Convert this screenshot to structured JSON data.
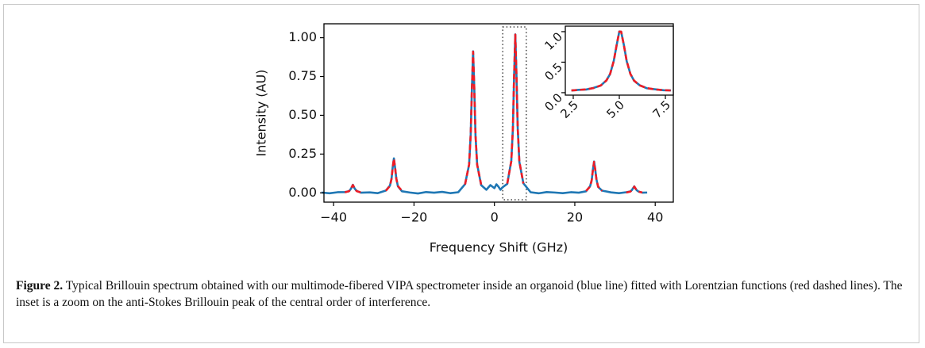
{
  "chart_data": [
    {
      "type": "line",
      "xlabel": "Frequency Shift (GHz)",
      "ylabel": "Intensity (AU)",
      "xlim": [
        -42.4,
        44.5
      ],
      "ylim": [
        -0.06,
        1.09
      ],
      "xticks": [
        {
          "value": -40,
          "label": "−40"
        },
        {
          "value": -20,
          "label": "−20"
        },
        0,
        20,
        40
      ],
      "yticks": [
        {
          "value": 0,
          "label": "0.00"
        },
        {
          "value": 0.25,
          "label": "0.25"
        },
        {
          "value": 0.5,
          "label": "0.50"
        },
        {
          "value": 0.75,
          "label": "0.75"
        },
        {
          "value": 1,
          "label": "1.00"
        }
      ],
      "grid": false,
      "x": [
        -43,
        -41,
        -39,
        -37.2,
        -36.2,
        -35.8,
        -35.5,
        -35.2,
        -34.9,
        -34.6,
        -34.2,
        -33.2,
        -31,
        -29,
        -27,
        -26,
        -25.6,
        -25.3,
        -25,
        -24.7,
        -24.4,
        -24,
        -23,
        -21,
        -19,
        -17,
        -15,
        -13,
        -11,
        -9,
        -7.3,
        -6.3,
        -5.9,
        -5.6,
        -5.3,
        -5,
        -4.7,
        -4.3,
        -3.3,
        -2,
        -1,
        0,
        0.5,
        1,
        1.5,
        2,
        3.2,
        4.2,
        4.6,
        4.9,
        5.2,
        5.5,
        5.8,
        6.2,
        7.2,
        9,
        11,
        13,
        15,
        17,
        19,
        21,
        22.8,
        23.8,
        24.2,
        24.5,
        24.8,
        25.1,
        25.4,
        25.8,
        26.8,
        29,
        31,
        32.8,
        33.8,
        34.2,
        34.5,
        34.8,
        35.1,
        35.4,
        35.8,
        36.8,
        38
      ],
      "series": [
        {
          "color": "#1f77b4",
          "style": "solid",
          "values": [
            0.002,
            -0.003,
            0.004,
            0.005,
            0.01,
            0.022,
            0.035,
            0.052,
            0.034,
            0.022,
            0.012,
            0.001,
            0.003,
            -0.002,
            0.015,
            0.046,
            0.088,
            0.165,
            0.222,
            0.16,
            0.093,
            0.042,
            0.01,
            0.002,
            -0.004,
            0.005,
            0.001,
            0.006,
            -0.002,
            0.004,
            0.056,
            0.18,
            0.376,
            0.665,
            0.913,
            0.672,
            0.37,
            0.185,
            0.05,
            0.02,
            0.05,
            0.03,
            0.055,
            0.04,
            0.02,
            0.035,
            0.058,
            0.206,
            0.415,
            0.752,
            1.022,
            0.748,
            0.42,
            0.2,
            0.062,
            0.004,
            -0.003,
            0.005,
            0.002,
            -0.002,
            0.004,
            0.001,
            0.01,
            0.043,
            0.08,
            0.15,
            0.202,
            0.145,
            0.085,
            0.038,
            0.014,
            0.003,
            -0.002,
            0.004,
            0.009,
            0.018,
            0.03,
            0.042,
            0.027,
            0.017,
            0.009,
            0.001,
            0.002
          ]
        },
        {
          "color": "#ee1c25",
          "style": "dashed",
          "values": [
            null,
            null,
            null,
            0.003,
            0.01,
            0.02,
            0.037,
            0.05,
            0.037,
            0.02,
            0.01,
            0.003,
            null,
            null,
            0.013,
            0.044,
            0.09,
            0.162,
            0.22,
            0.162,
            0.09,
            0.044,
            0.013,
            null,
            null,
            null,
            null,
            null,
            null,
            null,
            0.054,
            0.182,
            0.373,
            0.669,
            0.91,
            0.669,
            0.373,
            0.182,
            0.054,
            null,
            null,
            null,
            null,
            null,
            null,
            null,
            0.06,
            0.204,
            0.418,
            0.75,
            1.02,
            0.75,
            0.418,
            0.204,
            0.06,
            null,
            null,
            null,
            null,
            null,
            null,
            null,
            0.012,
            0.04,
            0.082,
            0.147,
            0.2,
            0.147,
            0.082,
            0.04,
            0.012,
            null,
            null,
            0.002,
            0.008,
            0.016,
            0.029,
            0.04,
            0.029,
            0.016,
            0.008,
            0.002,
            null
          ]
        }
      ]
    },
    {
      "type": "line",
      "xlim": [
        2.07,
        7.93
      ],
      "ylim": [
        -0.04,
        1.09
      ],
      "xticks": [
        2.5,
        {
          "value": 5,
          "label": "5.0"
        },
        7.5
      ],
      "yticks": [
        {
          "value": 0,
          "label": "0.0"
        },
        0.5,
        {
          "value": 1,
          "label": "1.0"
        }
      ],
      "grid": false,
      "x": [
        2.4,
        2.8,
        3.2,
        3.6,
        4.0,
        4.3,
        4.5,
        4.7,
        4.85,
        5.0,
        5.1,
        5.25,
        5.4,
        5.6,
        5.8,
        6.1,
        6.5,
        7.0,
        7.4,
        7.8
      ],
      "series": [
        {
          "color": "#1f77b4",
          "style": "solid",
          "values": [
            0.035,
            0.047,
            0.052,
            0.078,
            0.118,
            0.203,
            0.305,
            0.523,
            0.77,
            1.003,
            0.998,
            0.778,
            0.516,
            0.31,
            0.195,
            0.123,
            0.072,
            0.053,
            0.04,
            0.038
          ]
        },
        {
          "color": "#ee1c25",
          "style": "dashed",
          "values": [
            0.037,
            0.044,
            0.055,
            0.075,
            0.12,
            0.199,
            0.308,
            0.52,
            0.774,
            1.0,
            1.0,
            0.774,
            0.52,
            0.308,
            0.199,
            0.12,
            0.075,
            0.051,
            0.042,
            0.036
          ]
        }
      ]
    }
  ],
  "caption": {
    "label": "Figure 2.",
    "text": " Typical Brillouin spectrum obtained with our multimode-fibered VIPA spectrometer inside an organoid (blue line) fitted with Lorentzian functions (red dashed lines). The inset is a zoom on the anti-Stokes Brillouin peak of the central order of interference."
  }
}
